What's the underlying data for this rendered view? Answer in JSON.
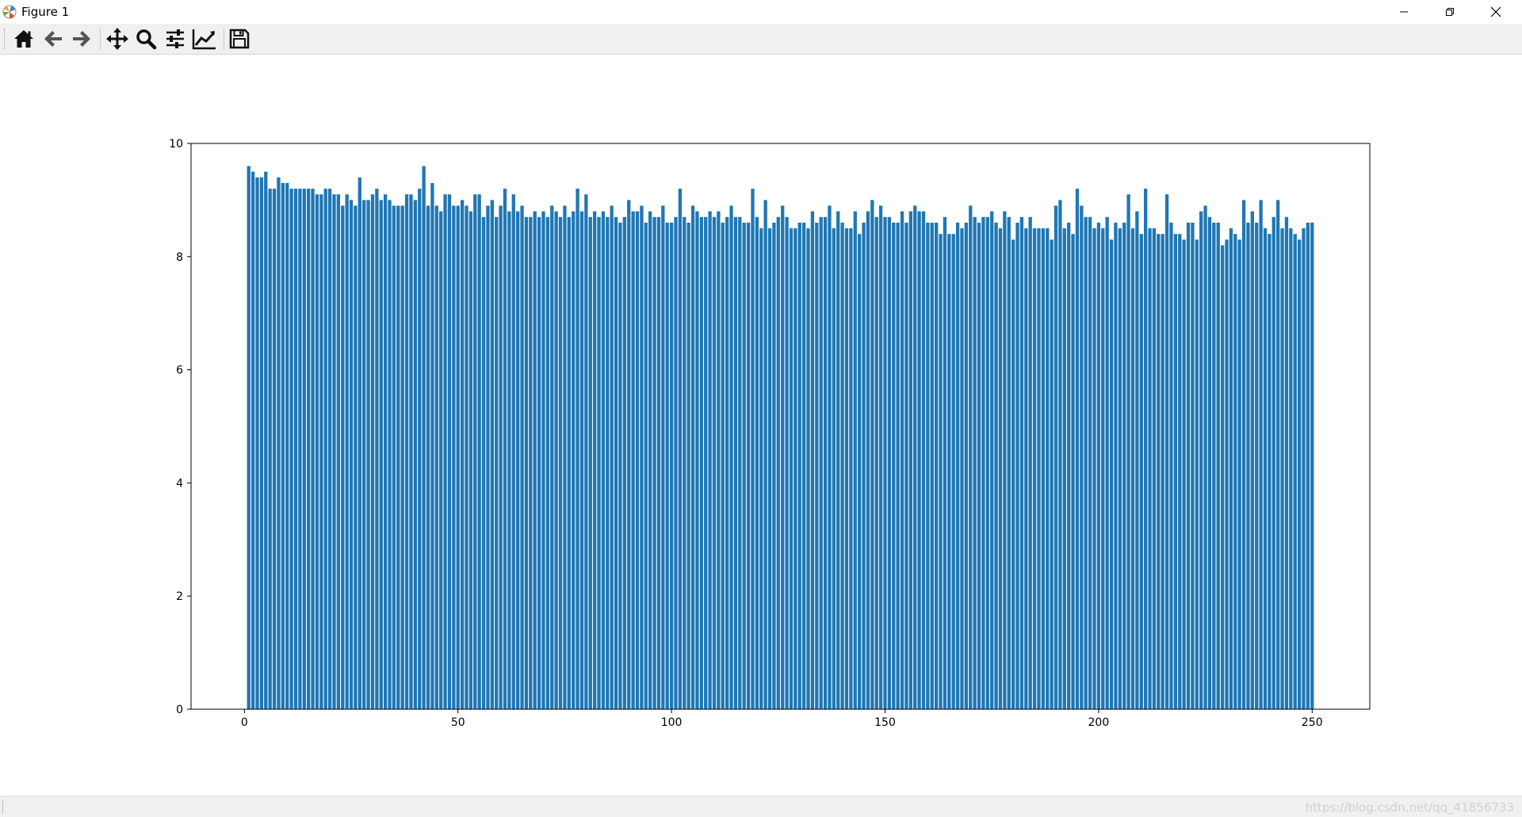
{
  "window": {
    "title": "Figure 1",
    "controls": [
      "minimize-icon",
      "restore-icon",
      "close-icon"
    ]
  },
  "toolbar": {
    "buttons": [
      {
        "name": "home-button",
        "icon": "home-icon"
      },
      {
        "name": "back-button",
        "icon": "arrow-left-icon"
      },
      {
        "name": "forward-button",
        "icon": "arrow-right-icon"
      },
      {
        "name": "pan-button",
        "icon": "move-arrows-icon"
      },
      {
        "name": "zoom-button",
        "icon": "magnifier-icon"
      },
      {
        "name": "configure-subplots-button",
        "icon": "sliders-icon"
      },
      {
        "name": "edit-axes-button",
        "icon": "line-chart-icon"
      },
      {
        "name": "save-button",
        "icon": "floppy-disk-icon"
      }
    ]
  },
  "status": {
    "watermark": "https://blog.csdn.net/qq_41856733"
  },
  "colors": {
    "bar": "#1f77b4",
    "toolbar_bg": "#f0f0f0"
  },
  "chart_data": {
    "type": "bar",
    "title": "",
    "xlabel": "",
    "ylabel": "",
    "xlim": [
      -12.5,
      263.5
    ],
    "ylim": [
      0,
      10
    ],
    "xticks": [
      0,
      50,
      100,
      150,
      200,
      250
    ],
    "yticks": [
      0,
      2,
      4,
      6,
      8,
      10
    ],
    "grid": false,
    "legend": "none",
    "x_start": 1,
    "values": [
      9.6,
      9.5,
      9.4,
      9.4,
      9.5,
      9.2,
      9.2,
      9.4,
      9.3,
      9.3,
      9.2,
      9.2,
      9.2,
      9.2,
      9.2,
      9.2,
      9.1,
      9.1,
      9.2,
      9.2,
      9.1,
      9.1,
      8.9,
      9.1,
      9.0,
      8.9,
      9.4,
      9.0,
      9.0,
      9.1,
      9.2,
      9.0,
      9.1,
      9.0,
      8.9,
      8.9,
      8.9,
      9.1,
      9.1,
      9.0,
      9.2,
      9.6,
      8.9,
      9.3,
      8.9,
      8.8,
      9.1,
      9.1,
      8.9,
      8.9,
      9.0,
      8.9,
      8.8,
      9.1,
      9.1,
      8.7,
      8.9,
      9.0,
      8.7,
      8.9,
      9.2,
      8.8,
      9.1,
      8.8,
      8.9,
      8.7,
      8.7,
      8.8,
      8.7,
      8.8,
      8.7,
      8.9,
      8.8,
      8.7,
      8.9,
      8.7,
      8.8,
      9.2,
      8.8,
      9.1,
      8.7,
      8.8,
      8.7,
      8.8,
      8.7,
      8.9,
      8.7,
      8.6,
      8.7,
      9.0,
      8.8,
      8.8,
      8.9,
      8.6,
      8.8,
      8.7,
      8.7,
      8.9,
      8.6,
      8.6,
      8.7,
      9.2,
      8.7,
      8.6,
      8.9,
      8.8,
      8.7,
      8.7,
      8.8,
      8.7,
      8.8,
      8.6,
      8.7,
      8.9,
      8.7,
      8.7,
      8.6,
      8.6,
      9.2,
      8.7,
      8.5,
      9.0,
      8.5,
      8.6,
      8.7,
      8.9,
      8.7,
      8.5,
      8.5,
      8.6,
      8.6,
      8.5,
      8.8,
      8.6,
      8.7,
      8.7,
      8.9,
      8.5,
      8.8,
      8.6,
      8.5,
      8.5,
      8.8,
      8.4,
      8.6,
      8.8,
      9.0,
      8.7,
      8.9,
      8.7,
      8.7,
      8.6,
      8.6,
      8.8,
      8.6,
      8.8,
      8.9,
      8.8,
      8.8,
      8.6,
      8.6,
      8.6,
      8.4,
      8.7,
      8.4,
      8.4,
      8.6,
      8.5,
      8.6,
      8.9,
      8.7,
      8.6,
      8.7,
      8.7,
      8.8,
      8.6,
      8.5,
      8.8,
      8.7,
      8.3,
      8.6,
      8.7,
      8.5,
      8.7,
      8.5,
      8.5,
      8.5,
      8.5,
      8.3,
      8.9,
      9.0,
      8.5,
      8.6,
      8.4,
      9.2,
      8.9,
      8.7,
      8.7,
      8.5,
      8.6,
      8.5,
      8.7,
      8.3,
      8.6,
      8.5,
      8.6,
      9.1,
      8.5,
      8.8,
      8.4,
      9.2,
      8.5,
      8.5,
      8.4,
      8.4,
      9.1,
      8.6,
      8.4,
      8.4,
      8.3,
      8.6,
      8.6,
      8.3,
      8.8,
      8.9,
      8.7,
      8.6,
      8.6,
      8.2,
      8.3,
      8.5,
      8.4,
      8.3,
      9.0,
      8.6,
      8.8,
      8.6,
      9.0,
      8.5,
      8.4,
      8.7,
      9.0,
      8.5,
      8.7,
      8.5,
      8.4,
      8.3,
      8.5,
      8.6,
      8.6
    ]
  }
}
